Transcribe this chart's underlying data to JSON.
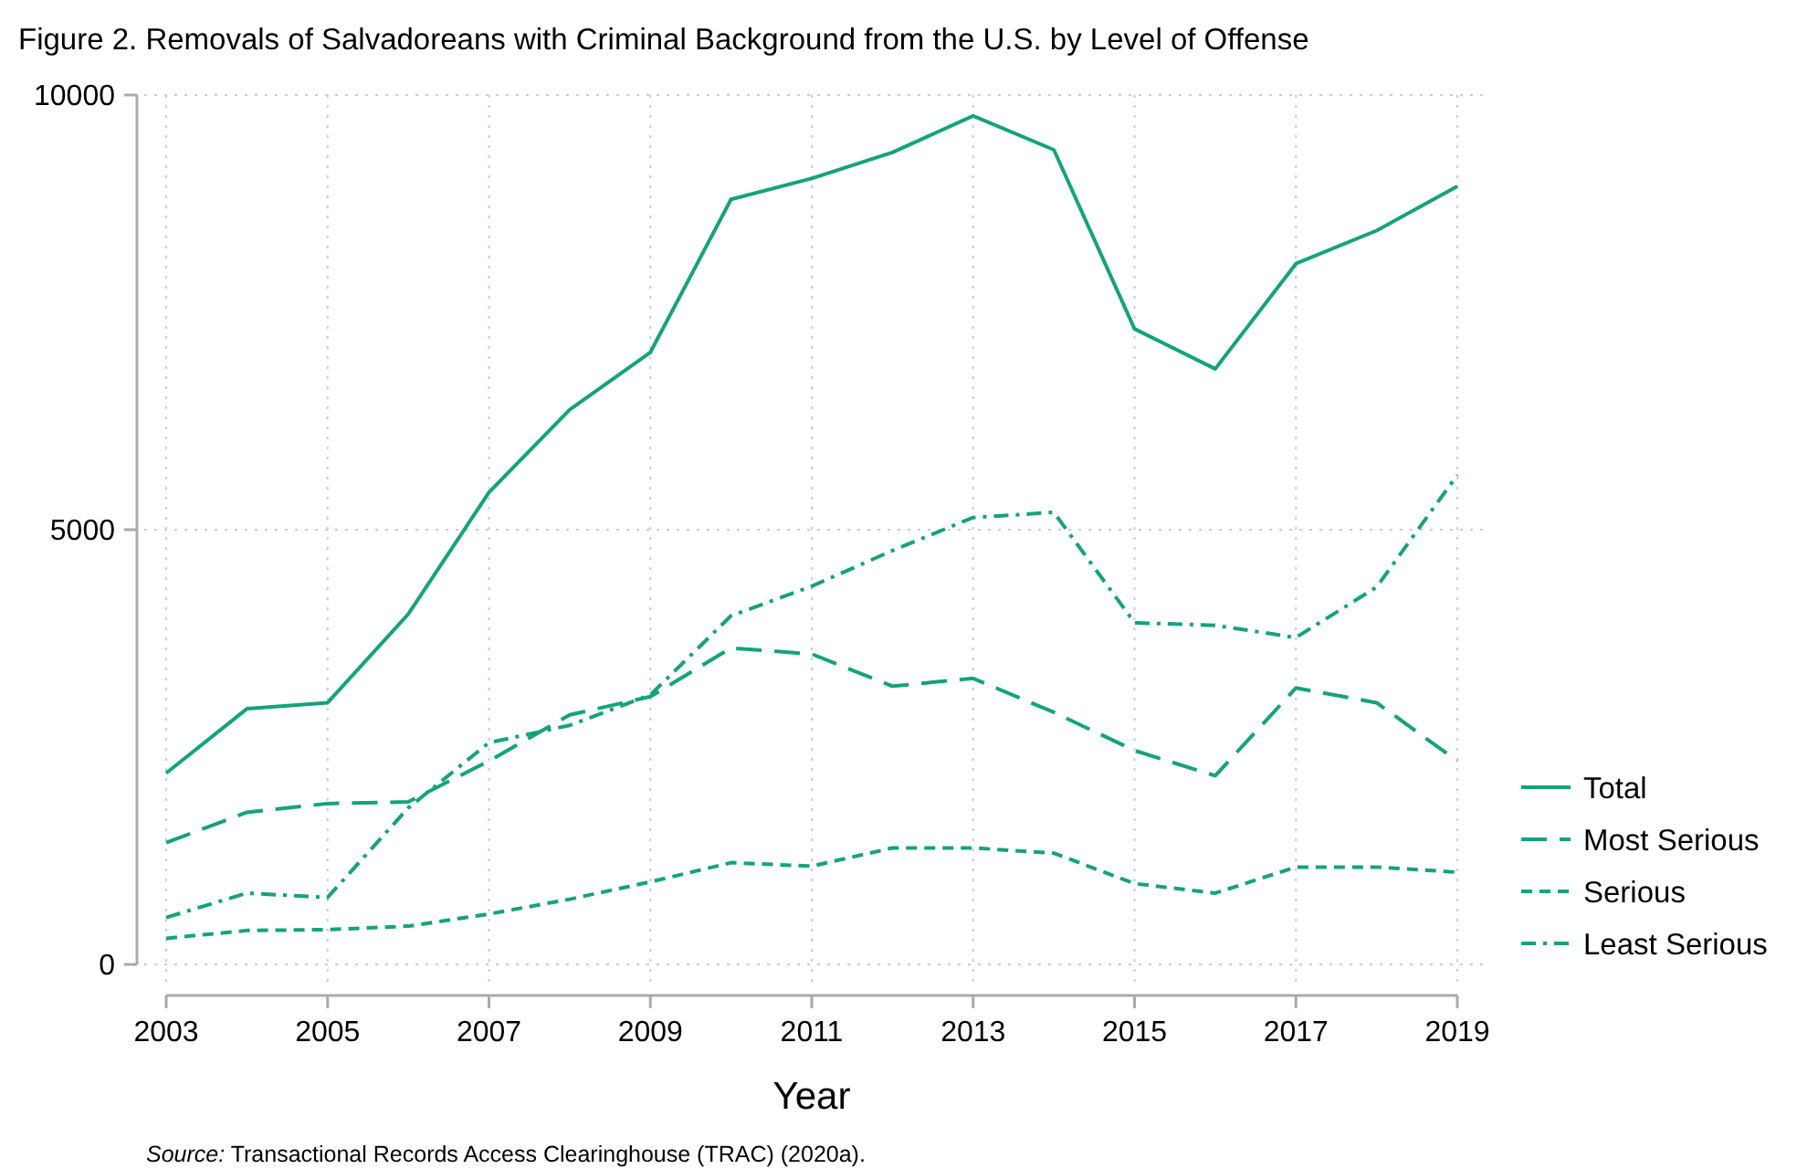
{
  "chart_data": {
    "type": "line",
    "title": "Figure 2. Removals of Salvadoreans with Criminal Background from the U.S. by Level of Offense",
    "xlabel": "Year",
    "x": [
      2003,
      2004,
      2005,
      2006,
      2007,
      2008,
      2009,
      2010,
      2011,
      2012,
      2013,
      2014,
      2015,
      2016,
      2017,
      2018,
      2019
    ],
    "series": [
      {
        "name": "Total",
        "color": "#14a37a",
        "line_style": "solid",
        "values": [
          2200,
          2940,
          3010,
          4030,
          5430,
          6380,
          7040,
          8800,
          9040,
          9340,
          9760,
          9370,
          7310,
          6850,
          8060,
          8440,
          8950
        ]
      },
      {
        "name": "Most Serious",
        "color": "#14a37a",
        "line_style": "longdash",
        "values": [
          1400,
          1750,
          1850,
          1870,
          2340,
          2870,
          3080,
          3640,
          3570,
          3200,
          3290,
          2900,
          2460,
          2170,
          3180,
          3010,
          2340
        ]
      },
      {
        "name": "Serious",
        "color": "#14a37a",
        "line_style": "dashed",
        "values": [
          300,
          390,
          400,
          440,
          580,
          750,
          950,
          1170,
          1130,
          1340,
          1340,
          1280,
          930,
          820,
          1120,
          1120,
          1060
        ]
      },
      {
        "name": "Least Serious",
        "color": "#14a37a",
        "line_style": "dashdot",
        "values": [
          540,
          820,
          770,
          1800,
          2550,
          2750,
          3100,
          4010,
          4350,
          4760,
          5140,
          5200,
          3930,
          3900,
          3760,
          4340,
          5630
        ]
      }
    ],
    "xlim": [
      2003,
      2019
    ],
    "xticks": [
      2003,
      2005,
      2007,
      2009,
      2011,
      2013,
      2015,
      2017,
      2019
    ],
    "ylim": [
      0,
      10000
    ],
    "yticks": [
      0,
      5000,
      10000
    ],
    "grid": true,
    "legend": "right",
    "marker": "none",
    "annotations": [
      "Source: Transactional Records Access Clearinghouse (TRAC) (2020a)."
    ]
  }
}
